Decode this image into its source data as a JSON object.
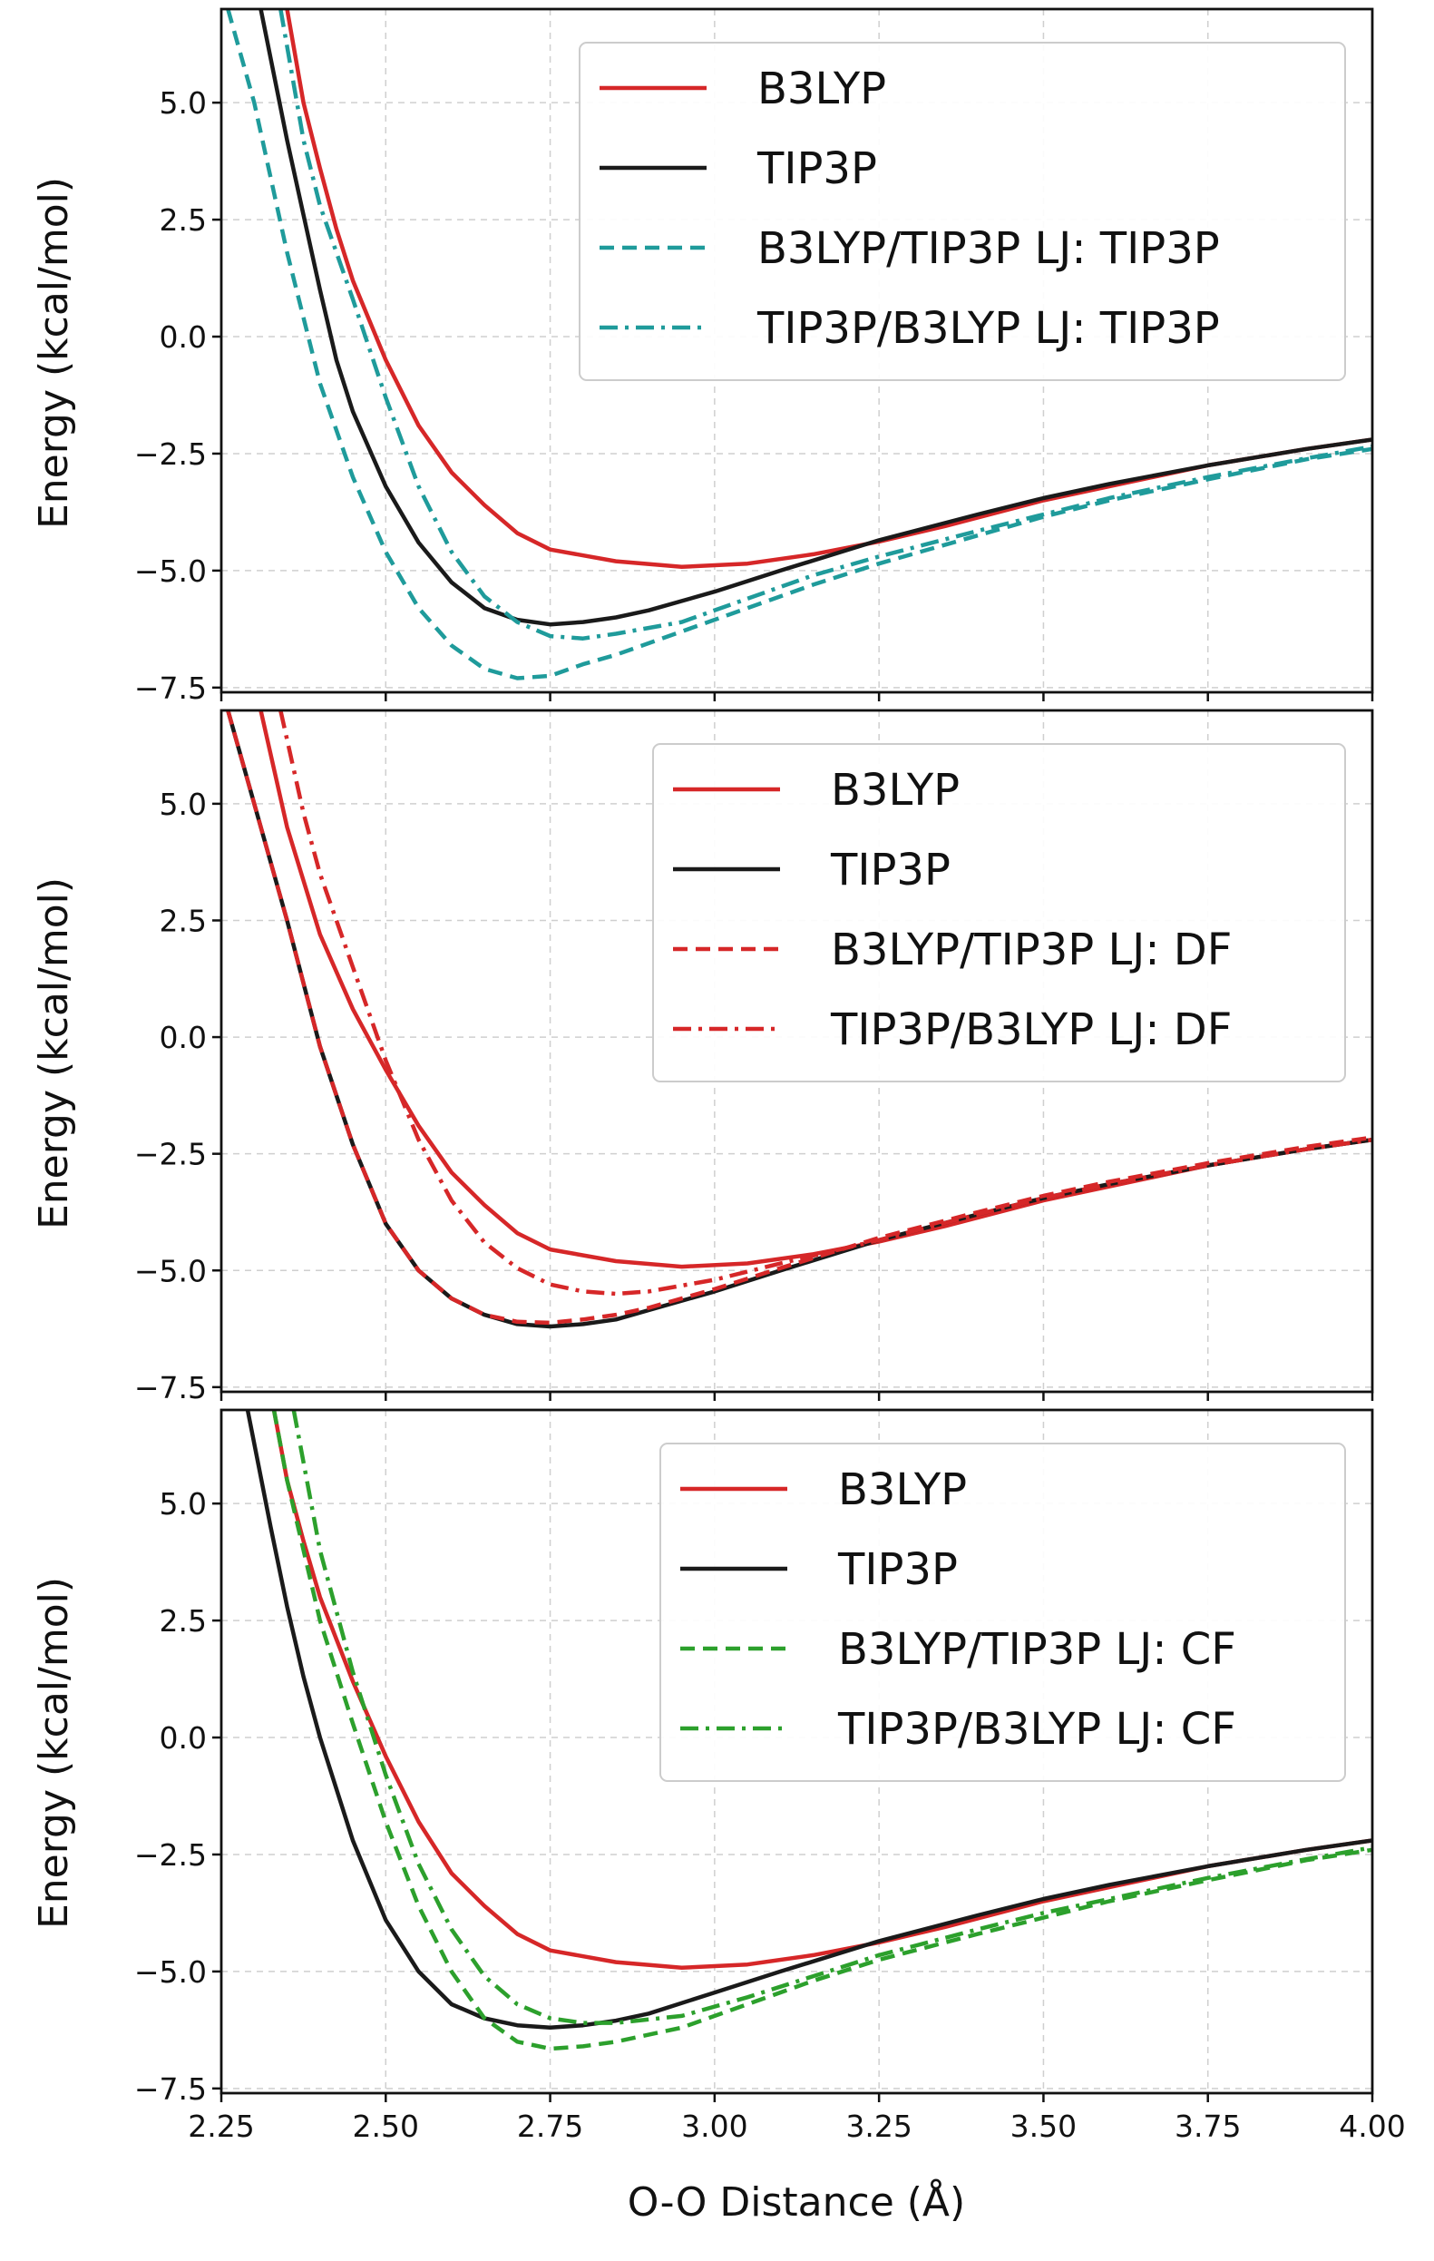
{
  "chart_data": [
    {
      "type": "line",
      "panel": "top",
      "xlabel": "",
      "ylabel": "Energy (kcal/mol)",
      "xlim": [
        2.25,
        4.0
      ],
      "ylim": [
        -7.6,
        7.0
      ],
      "xticks": [
        2.25,
        2.5,
        2.75,
        3.0,
        3.25,
        3.5,
        3.75,
        4.0
      ],
      "xtick_labels": [
        "2.25",
        "2.50",
        "2.75",
        "3.00",
        "3.25",
        "3.50",
        "3.75",
        "4.00"
      ],
      "yticks": [
        -7.5,
        -5.0,
        -2.5,
        0.0,
        2.5,
        5.0
      ],
      "ytick_labels": [
        "−7.5",
        "−5.0",
        "−2.5",
        "0.0",
        "2.5",
        "5.0"
      ],
      "grid": true,
      "legend_position": "top-right",
      "series": [
        {
          "name": "B3LYP",
          "color": "#d62728",
          "dash": "solid",
          "x": [
            2.35,
            2.375,
            2.4,
            2.425,
            2.45,
            2.5,
            2.55,
            2.6,
            2.65,
            2.7,
            2.75,
            2.85,
            2.95,
            3.05,
            3.15,
            3.25,
            3.35,
            3.5,
            3.6,
            3.75,
            3.9,
            4.0
          ],
          "y": [
            7.0,
            5.0,
            3.6,
            2.3,
            1.2,
            -0.5,
            -1.9,
            -2.9,
            -3.6,
            -4.2,
            -4.55,
            -4.8,
            -4.92,
            -4.85,
            -4.65,
            -4.38,
            -4.05,
            -3.5,
            -3.2,
            -2.75,
            -2.4,
            -2.2
          ]
        },
        {
          "name": "TIP3P",
          "color": "#1a1a1a",
          "dash": "solid",
          "x": [
            2.31,
            2.35,
            2.375,
            2.4,
            2.425,
            2.45,
            2.5,
            2.55,
            2.6,
            2.65,
            2.7,
            2.75,
            2.8,
            2.85,
            2.9,
            3.0,
            3.1,
            3.25,
            3.4,
            3.5,
            3.6,
            3.75,
            3.9,
            4.0
          ],
          "y": [
            7.0,
            4.2,
            2.6,
            1.0,
            -0.5,
            -1.6,
            -3.2,
            -4.4,
            -5.25,
            -5.8,
            -6.05,
            -6.15,
            -6.1,
            -6.0,
            -5.85,
            -5.45,
            -5.0,
            -4.35,
            -3.8,
            -3.45,
            -3.15,
            -2.75,
            -2.4,
            -2.2
          ]
        },
        {
          "name": "B3LYP/TIP3P LJ: TIP3P",
          "color": "#1f9b9b",
          "dash": "dashed",
          "x": [
            2.26,
            2.3,
            2.35,
            2.4,
            2.45,
            2.5,
            2.55,
            2.6,
            2.65,
            2.7,
            2.75,
            2.8,
            2.85,
            2.95,
            3.05,
            3.15,
            3.25,
            3.4,
            3.5,
            3.6,
            3.75,
            3.9,
            4.0
          ],
          "y": [
            7.0,
            5.0,
            1.8,
            -1.0,
            -3.0,
            -4.6,
            -5.8,
            -6.6,
            -7.1,
            -7.3,
            -7.25,
            -7.0,
            -6.8,
            -6.3,
            -5.8,
            -5.3,
            -4.85,
            -4.25,
            -3.85,
            -3.5,
            -3.05,
            -2.62,
            -2.4
          ]
        },
        {
          "name": "TIP3P/B3LYP LJ: TIP3P",
          "color": "#1f9b9b",
          "dash": "dashdot",
          "x": [
            2.34,
            2.375,
            2.4,
            2.45,
            2.5,
            2.55,
            2.6,
            2.65,
            2.7,
            2.75,
            2.8,
            2.85,
            2.95,
            3.05,
            3.15,
            3.25,
            3.4,
            3.5,
            3.6,
            3.75,
            3.9,
            4.0
          ],
          "y": [
            7.0,
            4.2,
            2.8,
            0.8,
            -1.3,
            -3.2,
            -4.6,
            -5.55,
            -6.1,
            -6.4,
            -6.45,
            -6.35,
            -6.1,
            -5.6,
            -5.1,
            -4.7,
            -4.15,
            -3.8,
            -3.45,
            -3.0,
            -2.6,
            -2.35
          ]
        }
      ]
    },
    {
      "type": "line",
      "panel": "middle",
      "xlabel": "",
      "ylabel": "Energy (kcal/mol)",
      "xlim": [
        2.25,
        4.0
      ],
      "ylim": [
        -7.6,
        7.0
      ],
      "xticks": [
        2.25,
        2.5,
        2.75,
        3.0,
        3.25,
        3.5,
        3.75,
        4.0
      ],
      "xtick_labels": [
        "2.25",
        "2.50",
        "2.75",
        "3.00",
        "3.25",
        "3.50",
        "3.75",
        "4.00"
      ],
      "yticks": [
        -7.5,
        -5.0,
        -2.5,
        0.0,
        2.5,
        5.0
      ],
      "ytick_labels": [
        "−7.5",
        "−5.0",
        "−2.5",
        "0.0",
        "2.5",
        "5.0"
      ],
      "grid": true,
      "legend_position": "top-right",
      "series": [
        {
          "name": "B3LYP",
          "color": "#d62728",
          "dash": "solid",
          "x": [
            2.31,
            2.35,
            2.4,
            2.45,
            2.5,
            2.55,
            2.6,
            2.65,
            2.7,
            2.75,
            2.85,
            2.95,
            3.05,
            3.15,
            3.25,
            3.35,
            3.5,
            3.6,
            3.75,
            3.9,
            4.0
          ],
          "y": [
            7.0,
            4.5,
            2.2,
            0.6,
            -0.7,
            -1.9,
            -2.9,
            -3.6,
            -4.2,
            -4.55,
            -4.8,
            -4.92,
            -4.85,
            -4.65,
            -4.38,
            -4.05,
            -3.5,
            -3.2,
            -2.75,
            -2.4,
            -2.2
          ]
        },
        {
          "name": "TIP3P",
          "color": "#1a1a1a",
          "dash": "solid",
          "x": [
            2.26,
            2.3,
            2.35,
            2.4,
            2.45,
            2.5,
            2.55,
            2.6,
            2.65,
            2.7,
            2.75,
            2.8,
            2.85,
            2.9,
            3.0,
            3.1,
            3.25,
            3.4,
            3.5,
            3.6,
            3.75,
            3.9,
            4.0
          ],
          "y": [
            7.0,
            5.0,
            2.5,
            -0.2,
            -2.3,
            -4.0,
            -5.0,
            -5.6,
            -5.95,
            -6.15,
            -6.2,
            -6.15,
            -6.05,
            -5.85,
            -5.45,
            -5.0,
            -4.35,
            -3.8,
            -3.45,
            -3.15,
            -2.75,
            -2.4,
            -2.2
          ]
        },
        {
          "name": "B3LYP/TIP3P LJ: DF",
          "color": "#d62728",
          "dash": "dashed",
          "x": [
            2.26,
            2.3,
            2.35,
            2.4,
            2.45,
            2.5,
            2.55,
            2.6,
            2.65,
            2.7,
            2.75,
            2.8,
            2.85,
            2.9,
            3.0,
            3.1,
            3.25,
            3.4,
            3.5,
            3.6,
            3.75,
            3.9,
            4.0
          ],
          "y": [
            7.0,
            5.0,
            2.5,
            -0.2,
            -2.3,
            -4.0,
            -5.0,
            -5.6,
            -5.95,
            -6.1,
            -6.12,
            -6.05,
            -5.95,
            -5.8,
            -5.4,
            -4.95,
            -4.3,
            -3.75,
            -3.4,
            -3.1,
            -2.7,
            -2.35,
            -2.15
          ]
        },
        {
          "name": "TIP3P/B3LYP LJ: DF",
          "color": "#d62728",
          "dash": "dashdot",
          "x": [
            2.34,
            2.375,
            2.4,
            2.45,
            2.5,
            2.55,
            2.6,
            2.65,
            2.7,
            2.75,
            2.8,
            2.85,
            2.9,
            3.0,
            3.1,
            3.25,
            3.4,
            3.5,
            3.6,
            3.75,
            3.9,
            4.0
          ],
          "y": [
            7.0,
            4.8,
            3.5,
            1.5,
            -0.5,
            -2.2,
            -3.5,
            -4.4,
            -4.95,
            -5.3,
            -5.45,
            -5.5,
            -5.45,
            -5.2,
            -4.85,
            -4.35,
            -3.8,
            -3.45,
            -3.15,
            -2.75,
            -2.4,
            -2.2
          ]
        }
      ]
    },
    {
      "type": "line",
      "panel": "bottom",
      "xlabel": "O-O Distance (Å)",
      "ylabel": "Energy (kcal/mol)",
      "xlim": [
        2.25,
        4.0
      ],
      "ylim": [
        -7.6,
        7.0
      ],
      "xticks": [
        2.25,
        2.5,
        2.75,
        3.0,
        3.25,
        3.5,
        3.75,
        4.0
      ],
      "xtick_labels": [
        "2.25",
        "2.50",
        "2.75",
        "3.00",
        "3.25",
        "3.50",
        "3.75",
        "4.00"
      ],
      "yticks": [
        -7.5,
        -5.0,
        -2.5,
        0.0,
        2.5,
        5.0
      ],
      "ytick_labels": [
        "−7.5",
        "−5.0",
        "−2.5",
        "0.0",
        "2.5",
        "5.0"
      ],
      "grid": true,
      "legend_position": "top-right",
      "series": [
        {
          "name": "B3LYP",
          "color": "#d62728",
          "dash": "solid",
          "x": [
            2.33,
            2.35,
            2.375,
            2.4,
            2.45,
            2.5,
            2.55,
            2.6,
            2.65,
            2.7,
            2.75,
            2.85,
            2.95,
            3.05,
            3.15,
            3.25,
            3.35,
            3.5,
            3.6,
            3.75,
            3.9,
            4.0
          ],
          "y": [
            7.0,
            5.5,
            4.2,
            3.0,
            1.2,
            -0.4,
            -1.8,
            -2.9,
            -3.6,
            -4.2,
            -4.55,
            -4.8,
            -4.92,
            -4.85,
            -4.65,
            -4.38,
            -4.05,
            -3.5,
            -3.2,
            -2.75,
            -2.4,
            -2.2
          ]
        },
        {
          "name": "TIP3P",
          "color": "#1a1a1a",
          "dash": "solid",
          "x": [
            2.29,
            2.325,
            2.35,
            2.375,
            2.4,
            2.45,
            2.5,
            2.55,
            2.6,
            2.65,
            2.7,
            2.75,
            2.8,
            2.85,
            2.9,
            3.0,
            3.1,
            3.25,
            3.4,
            3.5,
            3.6,
            3.75,
            3.9,
            4.0
          ],
          "y": [
            7.0,
            4.5,
            2.8,
            1.3,
            0.0,
            -2.2,
            -3.9,
            -5.0,
            -5.7,
            -6.0,
            -6.15,
            -6.2,
            -6.15,
            -6.05,
            -5.9,
            -5.45,
            -5.0,
            -4.35,
            -3.8,
            -3.45,
            -3.15,
            -2.75,
            -2.4,
            -2.2
          ]
        },
        {
          "name": "B3LYP/TIP3P LJ: CF",
          "color": "#2ca02c",
          "dash": "dashed",
          "x": [
            2.33,
            2.35,
            2.4,
            2.45,
            2.5,
            2.55,
            2.6,
            2.65,
            2.7,
            2.75,
            2.8,
            2.85,
            2.95,
            3.05,
            3.15,
            3.25,
            3.4,
            3.5,
            3.6,
            3.75,
            3.9,
            4.0
          ],
          "y": [
            7.0,
            5.5,
            2.5,
            0.3,
            -1.8,
            -3.6,
            -5.0,
            -6.0,
            -6.5,
            -6.65,
            -6.6,
            -6.5,
            -6.2,
            -5.7,
            -5.2,
            -4.75,
            -4.2,
            -3.85,
            -3.5,
            -3.05,
            -2.62,
            -2.4
          ]
        },
        {
          "name": "TIP3P/B3LYP LJ: CF",
          "color": "#2ca02c",
          "dash": "dashdot",
          "x": [
            2.36,
            2.4,
            2.45,
            2.5,
            2.55,
            2.6,
            2.65,
            2.7,
            2.75,
            2.8,
            2.85,
            2.95,
            3.05,
            3.15,
            3.25,
            3.4,
            3.5,
            3.6,
            3.75,
            3.9,
            4.0
          ],
          "y": [
            7.0,
            4.0,
            1.4,
            -0.8,
            -2.7,
            -4.1,
            -5.1,
            -5.7,
            -6.0,
            -6.1,
            -6.1,
            -5.95,
            -5.55,
            -5.1,
            -4.65,
            -4.1,
            -3.75,
            -3.45,
            -3.0,
            -2.6,
            -2.35
          ]
        }
      ]
    }
  ]
}
